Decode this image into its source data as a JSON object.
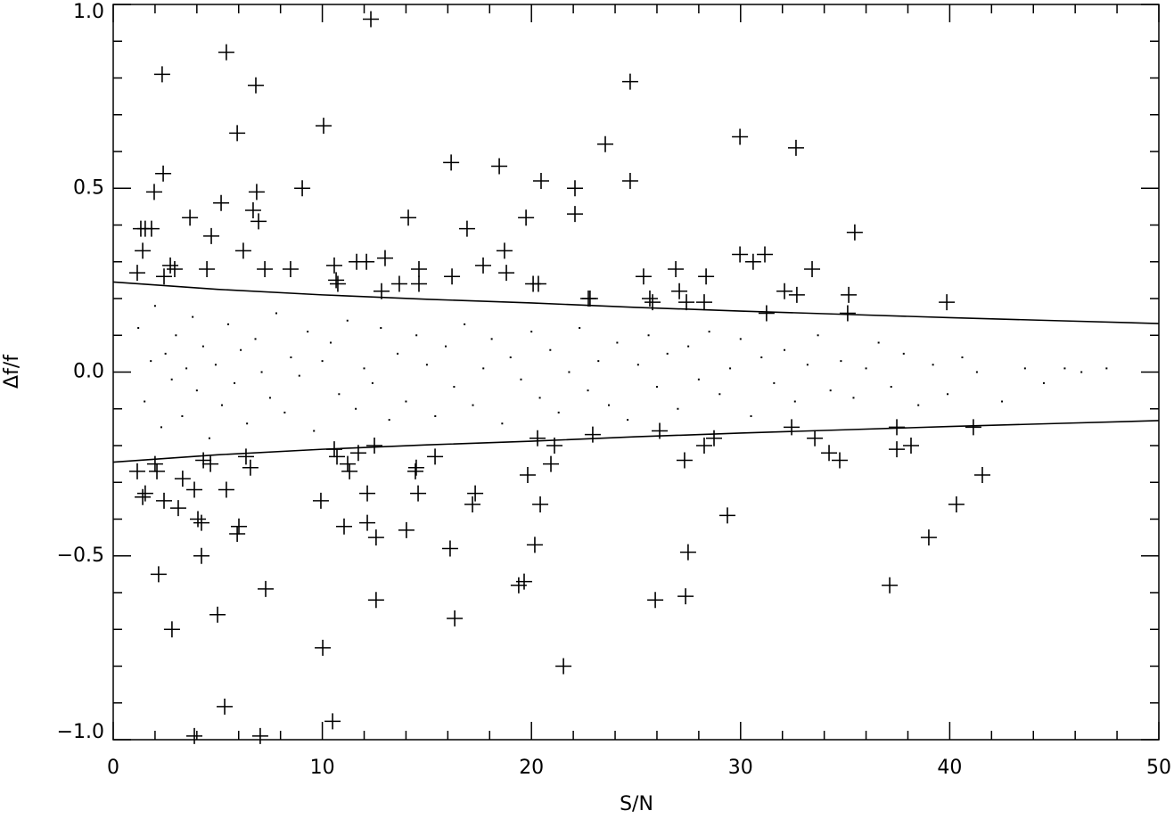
{
  "chart_data": {
    "type": "scatter",
    "xlabel": "S/N",
    "ylabel": "Δf/f",
    "xlim": [
      0,
      50
    ],
    "ylim": [
      -1,
      1
    ],
    "xticks": [
      0,
      10,
      20,
      30,
      40,
      50
    ],
    "xminorticks": [
      2,
      4,
      6,
      8,
      12,
      14,
      16,
      18,
      22,
      24,
      26,
      28,
      32,
      34,
      36,
      38,
      42,
      44,
      46,
      48
    ],
    "yticks": [
      {
        "value": -1,
        "label": "−1.0"
      },
      {
        "value": -0.5,
        "label": "−0.5"
      },
      {
        "value": 0,
        "label": "0.0"
      },
      {
        "value": 0.5,
        "label": "0.5"
      },
      {
        "value": 1,
        "label": "1.0"
      }
    ],
    "yminorticks": [
      -0.9,
      -0.8,
      -0.7,
      -0.6,
      -0.4,
      -0.3,
      -0.2,
      -0.1,
      0.1,
      0.2,
      0.3,
      0.4,
      0.6,
      0.7,
      0.8,
      0.9
    ],
    "series": [
      {
        "marker": "dot",
        "color": "#000000",
        "x": [
          1.2,
          1.5,
          1.8,
          2.0,
          2.3,
          2.5,
          2.8,
          3.0,
          3.3,
          3.5,
          3.8,
          4.0,
          4.3,
          4.6,
          4.9,
          5.2,
          5.5,
          5.8,
          6.1,
          6.4,
          6.8,
          7.1,
          7.5,
          7.8,
          8.2,
          8.5,
          8.9,
          9.3,
          9.6,
          10.0,
          10.4,
          10.8,
          11.2,
          11.6,
          12.0,
          12.4,
          12.8,
          13.2,
          13.6,
          14.0,
          14.5,
          15.0,
          15.4,
          15.9,
          16.3,
          16.8,
          17.2,
          17.7,
          18.1,
          18.6,
          19.0,
          19.5,
          20.0,
          20.4,
          20.9,
          21.3,
          21.8,
          22.3,
          22.7,
          23.2,
          23.7,
          24.1,
          24.6,
          25.1,
          25.6,
          26.0,
          26.5,
          27.0,
          27.5,
          28.0,
          28.5,
          29.0,
          29.5,
          30.0,
          30.5,
          31.0,
          31.6,
          32.1,
          32.6,
          33.2,
          33.7,
          34.3,
          34.8,
          35.4,
          36.0,
          36.6,
          37.2,
          37.8,
          38.5,
          39.2,
          39.9,
          40.6,
          41.3,
          42.5,
          43.6,
          44.5,
          45.5,
          46.3,
          47.5
        ],
        "values": [
          0.12,
          -0.08,
          0.03,
          0.18,
          -0.15,
          0.05,
          -0.02,
          0.1,
          -0.12,
          0.01,
          0.15,
          -0.05,
          0.07,
          -0.18,
          0.02,
          -0.09,
          0.13,
          -0.03,
          0.06,
          -0.14,
          0.09,
          0.0,
          -0.07,
          0.16,
          -0.11,
          0.04,
          -0.01,
          0.11,
          -0.16,
          0.03,
          0.08,
          -0.06,
          0.14,
          -0.1,
          0.01,
          -0.03,
          0.12,
          -0.13,
          0.05,
          -0.08,
          0.1,
          0.02,
          -0.12,
          0.07,
          -0.04,
          0.13,
          -0.09,
          0.01,
          0.09,
          -0.14,
          0.04,
          -0.02,
          0.11,
          -0.07,
          0.06,
          -0.11,
          0.0,
          0.12,
          -0.05,
          0.03,
          -0.09,
          0.08,
          -0.13,
          0.02,
          0.1,
          -0.04,
          0.05,
          -0.1,
          0.07,
          -0.02,
          0.11,
          -0.06,
          0.01,
          0.09,
          -0.12,
          0.04,
          -0.03,
          0.06,
          -0.08,
          0.02,
          0.1,
          -0.05,
          0.03,
          -0.07,
          0.01,
          0.08,
          -0.04,
          0.05,
          -0.09,
          0.02,
          -0.06,
          0.04,
          0.0,
          -0.08,
          0.01,
          -0.03,
          0.01,
          0.0,
          0.01
        ]
      },
      {
        "marker": "cross",
        "color": "#000000",
        "x": [
          1.15,
          1.32,
          1.41,
          1.53,
          1.83,
          1.96,
          2.34,
          2.39,
          2.43,
          2.73,
          2.94,
          3.67,
          4.48,
          4.69,
          5.16,
          5.41,
          5.93,
          6.22,
          6.69,
          6.82,
          6.86,
          6.95,
          7.25,
          8.48,
          9.04,
          10.06,
          10.57,
          10.66,
          10.74,
          11.64,
          12.11,
          12.32,
          13.0,
          12.83,
          13.68,
          14.11,
          14.62,
          14.62,
          16.16,
          16.2,
          16.92,
          17.69,
          18.46,
          18.71,
          18.8,
          19.74,
          20.08,
          20.33,
          20.46,
          22.08,
          22.08,
          22.72,
          22.8,
          23.53,
          24.72,
          24.72,
          25.36,
          25.66,
          25.79,
          26.9,
          27.07,
          27.41,
          28.26,
          28.35,
          29.97,
          29.97,
          30.6,
          31.16,
          31.24,
          32.1,
          32.65,
          32.69,
          33.42,
          35.12,
          35.17,
          35.46,
          39.86,
          1.15,
          1.41,
          1.53,
          2.0,
          2.09,
          2.17,
          2.43,
          2.81,
          3.11,
          3.32,
          3.88,
          4.05,
          4.22,
          4.22,
          4.31,
          4.65,
          4.99,
          5.33,
          5.41,
          5.93,
          6.01,
          6.35,
          6.56,
          7.03,
          7.29,
          9.93,
          10.02,
          10.49,
          10.57,
          10.7,
          11.04,
          11.3,
          11.21,
          11.72,
          12.15,
          12.15,
          12.49,
          12.57,
          12.57,
          14.02,
          14.45,
          14.49,
          14.58,
          15.39,
          16.11,
          16.33,
          17.18,
          17.31,
          19.39,
          19.65,
          19.82,
          20.16,
          20.29,
          20.42,
          20.93,
          21.1,
          21.53,
          22.93,
          25.92,
          26.13,
          27.32,
          27.49,
          27.37,
          28.26,
          28.73,
          29.37,
          32.44,
          33.55,
          34.23,
          34.74,
          37.13,
          37.47,
          37.47,
          38.15,
          39.0,
          40.32,
          41.13,
          41.56,
          3.88
        ],
        "values": [
          0.27,
          0.39,
          0.33,
          0.39,
          0.39,
          0.49,
          0.81,
          0.54,
          0.26,
          0.29,
          0.28,
          0.42,
          0.28,
          0.37,
          0.46,
          0.87,
          0.65,
          0.33,
          0.44,
          0.78,
          0.49,
          0.41,
          0.28,
          0.28,
          0.5,
          0.67,
          0.29,
          0.25,
          0.24,
          0.3,
          0.3,
          0.96,
          0.31,
          0.22,
          0.24,
          0.42,
          0.28,
          0.24,
          0.57,
          0.26,
          0.39,
          0.29,
          0.56,
          0.33,
          0.27,
          0.42,
          0.24,
          0.24,
          0.52,
          0.43,
          0.5,
          0.2,
          0.2,
          0.62,
          0.79,
          0.52,
          0.26,
          0.2,
          0.19,
          0.28,
          0.22,
          0.19,
          0.19,
          0.26,
          0.64,
          0.32,
          0.3,
          0.32,
          0.16,
          0.22,
          0.61,
          0.21,
          0.28,
          0.16,
          0.21,
          0.38,
          0.19,
          -0.27,
          -0.34,
          -0.33,
          -0.25,
          -0.27,
          -0.55,
          -0.35,
          -0.7,
          -0.37,
          -0.29,
          -0.32,
          -0.4,
          -0.41,
          -0.5,
          -0.24,
          -0.25,
          -0.66,
          -0.91,
          -0.32,
          -0.44,
          -0.42,
          -0.23,
          -0.26,
          -0.99,
          -0.59,
          -0.35,
          -0.75,
          -0.95,
          -0.21,
          -0.23,
          -0.42,
          -0.27,
          -0.25,
          -0.22,
          -0.33,
          -0.41,
          -0.2,
          -0.45,
          -0.62,
          -0.43,
          -0.27,
          -0.26,
          -0.33,
          -0.23,
          -0.48,
          -0.67,
          -0.36,
          -0.33,
          -0.58,
          -0.57,
          -0.28,
          -0.47,
          -0.18,
          -0.36,
          -0.25,
          -0.2,
          -0.8,
          -0.17,
          -0.62,
          -0.16,
          -0.24,
          -0.49,
          -0.61,
          -0.2,
          -0.18,
          -0.39,
          -0.15,
          -0.18,
          -0.22,
          -0.24,
          -0.58,
          -0.15,
          -0.21,
          -0.2,
          -0.45,
          -0.36,
          -0.15,
          -0.28,
          -0.99
        ]
      },
      {
        "marker": "line",
        "color": "#000000",
        "x": [
          0,
          5,
          10,
          15,
          20,
          25,
          30,
          35,
          40,
          45,
          50
        ],
        "values": [
          0.245,
          0.225,
          0.21,
          0.198,
          0.188,
          0.176,
          0.166,
          0.157,
          0.148,
          0.14,
          0.132
        ]
      },
      {
        "marker": "line",
        "color": "#000000",
        "x": [
          0,
          5,
          10,
          15,
          20,
          25,
          30,
          35,
          40,
          45,
          50
        ],
        "values": [
          -0.245,
          -0.225,
          -0.21,
          -0.198,
          -0.188,
          -0.176,
          -0.166,
          -0.157,
          -0.148,
          -0.14,
          -0.132
        ]
      }
    ]
  }
}
